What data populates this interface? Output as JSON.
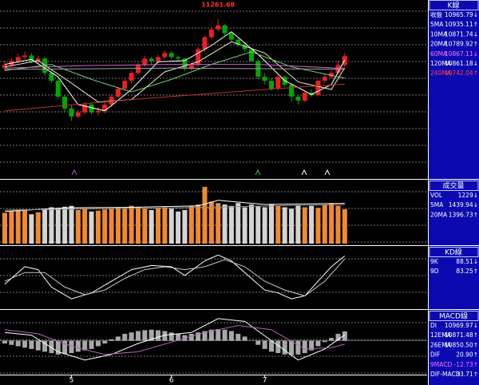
{
  "chart_data": [
    {
      "type": "candlestick",
      "title": "K線",
      "up_color": "#e82020",
      "down_color": "#00a800",
      "ylim": [
        10000,
        11400
      ],
      "grid": true,
      "open": [
        10870,
        10895,
        10927,
        10958,
        10971,
        10927,
        10946,
        10832,
        10769,
        10643,
        10548,
        10485,
        10517,
        10580,
        10517,
        10529,
        10580,
        10643,
        10706,
        10769,
        10832,
        10895,
        10946,
        10927,
        10958,
        10990,
        10958,
        10946,
        10864,
        10895,
        11021,
        11116,
        11179,
        11211,
        11148,
        11097,
        11053,
        11021,
        10927,
        10801,
        10769,
        10706,
        10801,
        10737,
        10643,
        10611,
        10674,
        10655,
        10769,
        10801,
        10832,
        10895
      ],
      "high": [
        10930,
        10950,
        10985,
        11000,
        10990,
        10970,
        10960,
        10850,
        10790,
        10660,
        10580,
        10540,
        10600,
        10590,
        10560,
        10600,
        10660,
        10720,
        10790,
        10850,
        10910,
        10970,
        10960,
        10975,
        11010,
        11000,
        10970,
        10950,
        10910,
        11040,
        11130,
        11200,
        11261.68,
        11220,
        11160,
        11110,
        11080,
        11030,
        10940,
        10830,
        10790,
        10810,
        10810,
        10750,
        10660,
        10690,
        10700,
        10780,
        10820,
        10850,
        10930,
        10990
      ],
      "low": [
        10850,
        10880,
        10910,
        10940,
        10910,
        10900,
        10810,
        10750,
        10620,
        10520,
        10450,
        10470,
        10500,
        10500,
        10490,
        10510,
        10560,
        10630,
        10690,
        10750,
        10820,
        10880,
        10900,
        10910,
        10940,
        10940,
        10920,
        10850,
        10850,
        10880,
        11000,
        11100,
        11160,
        11130,
        11080,
        11040,
        11000,
        10920,
        10780,
        10740,
        10690,
        10690,
        10720,
        10600,
        10580,
        10600,
        10640,
        10650,
        10750,
        10780,
        10820,
        10880
      ],
      "close": [
        10895,
        10927,
        10958,
        10971,
        10927,
        10946,
        10832,
        10769,
        10643,
        10548,
        10485,
        10517,
        10580,
        10517,
        10529,
        10580,
        10643,
        10706,
        10769,
        10832,
        10895,
        10946,
        10927,
        10958,
        10990,
        10958,
        10946,
        10864,
        10895,
        11021,
        11116,
        11179,
        11211,
        11148,
        11097,
        11053,
        11021,
        10927,
        10801,
        10769,
        10706,
        10801,
        10737,
        10643,
        10611,
        10674,
        10655,
        10769,
        10801,
        10832,
        10895,
        10965.79
      ],
      "series": [
        {
          "name": "5MA",
          "color": "#ffffff",
          "x": [
            0,
            4,
            8,
            11,
            15,
            19,
            23,
            27,
            31,
            34,
            38,
            42,
            46,
            49,
            51
          ],
          "values": [
            10900,
            10940,
            10800,
            10580,
            10530,
            10700,
            10920,
            10930,
            11050,
            11160,
            10980,
            10770,
            10660,
            10740,
            10935.11
          ]
        },
        {
          "name": "10MA",
          "color": "#e8e8c0",
          "x": [
            0,
            5,
            10,
            14,
            19,
            24,
            29,
            34,
            39,
            44,
            49,
            51
          ],
          "values": [
            10880,
            10930,
            10750,
            10600,
            10620,
            10840,
            10920,
            11080,
            10990,
            10760,
            10700,
            10871.74
          ]
        },
        {
          "name": "20MA",
          "color": "#70d070",
          "x": [
            0,
            7,
            13,
            19,
            25,
            31,
            37,
            43,
            51
          ],
          "values": [
            10850,
            10900,
            10780,
            10680,
            10780,
            10900,
            11000,
            10880,
            10789.92
          ]
        },
        {
          "name": "60MA",
          "color": "#d060d0",
          "x": [
            0,
            12,
            25,
            38,
            51
          ],
          "values": [
            10870,
            10890,
            10900,
            10900,
            10867.11
          ]
        },
        {
          "name": "120MA",
          "color": "#a0a0a0",
          "x": [
            0,
            25,
            51
          ],
          "values": [
            10860,
            10870,
            10861.18
          ]
        },
        {
          "name": "240MA",
          "color": "#c03030",
          "x": [
            0,
            19,
            39,
            51
          ],
          "values": [
            10530,
            10620,
            10700,
            10742.04
          ]
        }
      ],
      "legend": [
        {
          "name": "收盤",
          "value": "10965.79↓",
          "color": "#ffffff"
        },
        {
          "name": "5MA",
          "value": "10935.11↑",
          "color": "#ffffff"
        },
        {
          "name": "10MA",
          "value": "10871.74↓",
          "color": "#ffffff"
        },
        {
          "name": "20MA",
          "value": "10789.92↑",
          "color": "#ffffff"
        },
        {
          "name": "60MA",
          "value": "10867.11↓",
          "color": "#ff70ff"
        },
        {
          "name": "120MA",
          "value": "10861.18↓",
          "color": "#ffffff"
        },
        {
          "name": "240MA",
          "value": "10742.04↑",
          "color": "#ff4040"
        }
      ]
    },
    {
      "type": "bar",
      "title": "成交量",
      "up_color": "#f08a30",
      "down_color": "#d4d4d4",
      "ylim": [
        0,
        2200
      ],
      "grid": true,
      "values": [
        1100,
        1150,
        1200,
        1180,
        1050,
        1120,
        1250,
        1300,
        1280,
        1320,
        1350,
        1200,
        1250,
        1150,
        1180,
        1220,
        1260,
        1300,
        1280,
        1350,
        1300,
        1250,
        1200,
        1280,
        1300,
        1250,
        1150,
        1200,
        1350,
        1400,
        2030,
        1500,
        1450,
        1400,
        1350,
        1450,
        1300,
        1400,
        1350,
        1300,
        1420,
        1350,
        1300,
        1250,
        1380,
        1300,
        1350,
        1280,
        1400,
        1450,
        1350,
        1229
      ],
      "series": [
        {
          "name": "5MA",
          "color": "#ffffff",
          "x": [
            0,
            9,
            19,
            29,
            32,
            39,
            51
          ],
          "values": [
            1150,
            1280,
            1300,
            1350,
            1550,
            1400,
            1439.94
          ]
        },
        {
          "name": "20MA",
          "color": "#909090",
          "x": [
            0,
            25,
            51
          ],
          "values": [
            1200,
            1280,
            1396.73
          ]
        }
      ],
      "legend": [
        {
          "name": "VOL",
          "value": "1229↓",
          "color": "#ffffff"
        },
        {
          "name": "5MA",
          "value": "1439.94↓",
          "color": "#ffffff"
        },
        {
          "name": "20MA",
          "value": "1396.73↑",
          "color": "#ffffff"
        }
      ]
    },
    {
      "type": "line",
      "title": "KD線",
      "ylim": [
        0,
        100
      ],
      "grid": true,
      "series": [
        {
          "name": "9K",
          "color": "#ffffff",
          "x": [
            0,
            3,
            5,
            7,
            10,
            13,
            16,
            19,
            22,
            25,
            27,
            30,
            32,
            34,
            37,
            39,
            41,
            43,
            45,
            47,
            49,
            51
          ],
          "values": [
            40,
            70,
            65,
            35,
            15,
            25,
            45,
            65,
            72,
            70,
            55,
            80,
            90,
            80,
            50,
            30,
            25,
            15,
            20,
            45,
            70,
            88.51
          ]
        },
        {
          "name": "9D",
          "color": "#c8c8c8",
          "x": [
            0,
            3,
            6,
            9,
            12,
            15,
            18,
            21,
            24,
            27,
            30,
            33,
            36,
            39,
            42,
            45,
            48,
            51
          ],
          "values": [
            45,
            60,
            60,
            35,
            22,
            30,
            50,
            65,
            70,
            65,
            70,
            82,
            70,
            45,
            30,
            20,
            45,
            83.25
          ]
        }
      ],
      "legend": [
        {
          "name": "9K",
          "value": "88.51↓",
          "color": "#ffffff"
        },
        {
          "name": "9D",
          "value": "83.25↑",
          "color": "#ffffff"
        }
      ]
    },
    {
      "type": "macd",
      "title": "MACD線",
      "color": "#a8a8a8",
      "ylim": [
        -120,
        100
      ],
      "grid": true,
      "categories": [
        null,
        null,
        null,
        null,
        null,
        null,
        null,
        null,
        null,
        null,
        "5",
        null,
        null,
        null,
        null,
        null,
        null,
        null,
        null,
        null,
        null,
        null,
        null,
        null,
        null,
        "6",
        null,
        null,
        null,
        null,
        null,
        null,
        null,
        null,
        null,
        null,
        null,
        null,
        null,
        "7",
        null,
        null,
        null,
        null,
        null,
        null,
        null,
        null,
        null,
        null,
        null,
        null
      ],
      "values": [
        -10,
        -15,
        -20,
        -25,
        -30,
        -35,
        -40,
        -45,
        -50,
        -48,
        -45,
        -40,
        -35,
        -30,
        -20,
        -10,
        5,
        15,
        25,
        30,
        35,
        38,
        40,
        38,
        35,
        30,
        25,
        20,
        25,
        30,
        35,
        40,
        42,
        40,
        35,
        25,
        15,
        0,
        -15,
        -30,
        -40,
        -45,
        -50,
        -52,
        -50,
        -45,
        -35,
        -20,
        -5,
        10,
        25,
        33.71
      ],
      "series": [
        {
          "name": "DIF",
          "color": "#ffffff",
          "x": [
            0,
            4,
            8,
            12,
            16,
            20,
            24,
            28,
            32,
            36,
            40,
            44,
            48,
            51
          ],
          "values": [
            30,
            20,
            -40,
            -70,
            -50,
            -10,
            20,
            30,
            80,
            70,
            0,
            -70,
            -30,
            20.9
          ]
        },
        {
          "name": "9MACD",
          "color": "#c060c0",
          "x": [
            0,
            5,
            10,
            15,
            20,
            25,
            30,
            35,
            40,
            45,
            49,
            51
          ],
          "values": [
            40,
            25,
            -20,
            -50,
            -40,
            -5,
            30,
            55,
            40,
            -30,
            -25,
            -12.73
          ]
        }
      ],
      "legend": [
        {
          "name": "DI",
          "value": "10969.97↓",
          "color": "#ffffff"
        },
        {
          "name": "12EMA",
          "value": "10871.48↑",
          "color": "#ffffff"
        },
        {
          "name": "26EMA",
          "value": "10850.50↑",
          "color": "#ffffff"
        },
        {
          "name": "DIF",
          "value": "20.90↑",
          "color": "#ffffff"
        },
        {
          "name": "9MACD",
          "value": "-12.73↑",
          "color": "#ff70ff"
        },
        {
          "name": "DIF-MACD",
          "value": "33.71↑",
          "color": "#ffffff"
        }
      ]
    }
  ]
}
